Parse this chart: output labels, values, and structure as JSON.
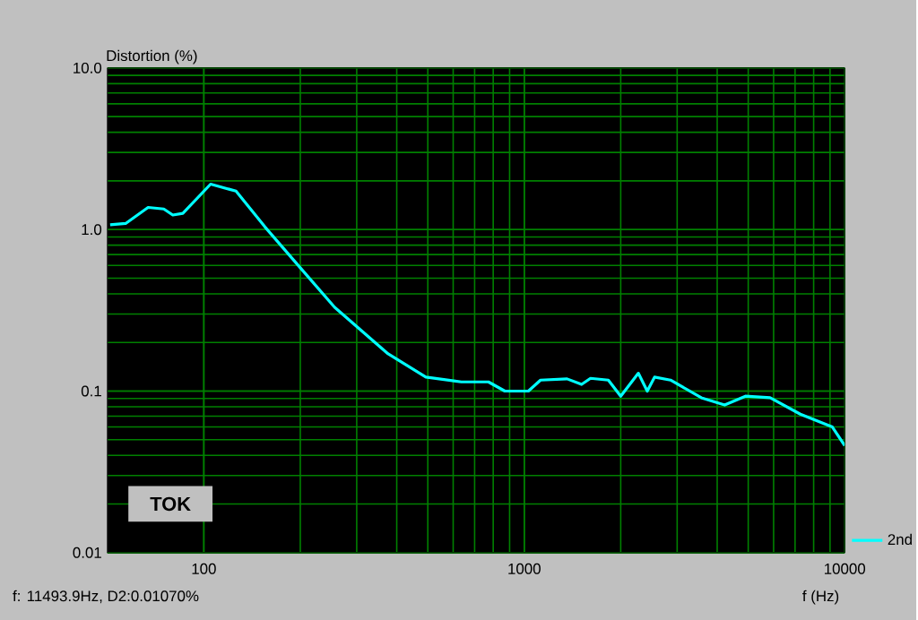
{
  "chart_data": {
    "type": "line",
    "ylabel": "Distortion (%)",
    "xlabel": "f (Hz)",
    "log": "xy",
    "grid": true,
    "legend": "bottom right",
    "xlim": [
      50,
      10000
    ],
    "ylim": [
      0.01,
      10
    ],
    "xticks": [
      100,
      1000,
      10000
    ],
    "yticks": [
      {
        "value": 0.01,
        "label": "0.01"
      },
      {
        "value": 0.1,
        "label": "0.1"
      },
      {
        "value": 1,
        "label": "1.0"
      },
      {
        "value": 10,
        "label": "10.0"
      }
    ],
    "annotations": [
      "TOK",
      "f: 11493.9Hz,  D2:0.01070%"
    ],
    "series": [
      {
        "name": "2nd",
        "color": "#00ffff",
        "x": [
          51,
          57,
          67,
          75,
          80,
          86,
          105,
          126,
          155,
          200,
          256,
          376,
          493,
          636,
          773,
          870,
          1030,
          1124,
          1360,
          1510,
          1610,
          1830,
          2000,
          2270,
          2420,
          2550,
          2860,
          3570,
          4220,
          4900,
          5850,
          7270,
          9150,
          10000
        ],
        "values": [
          1.07,
          1.09,
          1.37,
          1.34,
          1.23,
          1.26,
          1.91,
          1.73,
          1.04,
          0.58,
          0.33,
          0.17,
          0.122,
          0.114,
          0.114,
          0.1,
          0.1,
          0.117,
          0.119,
          0.11,
          0.12,
          0.117,
          0.093,
          0.129,
          0.1,
          0.122,
          0.117,
          0.091,
          0.082,
          0.093,
          0.091,
          0.072,
          0.06,
          0.046
        ]
      }
    ]
  }
}
